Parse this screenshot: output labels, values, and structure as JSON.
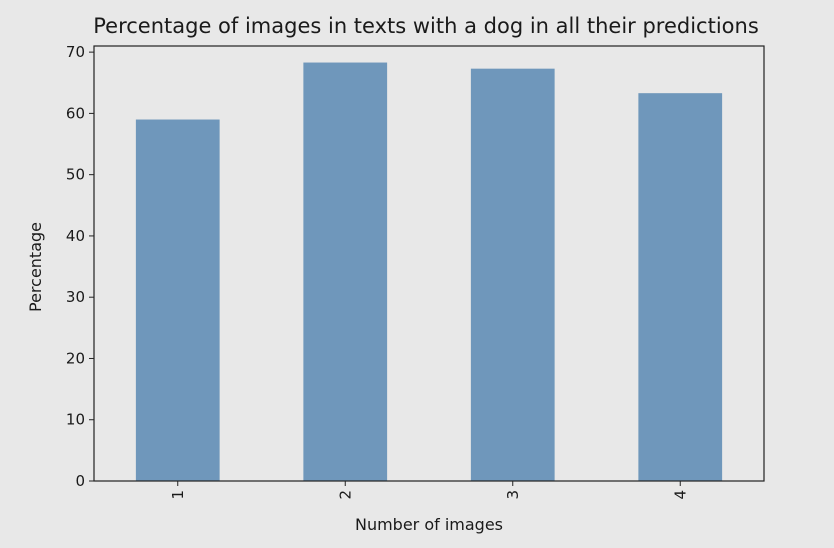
{
  "chart_data": {
    "type": "bar",
    "title": "Percentage of images in texts with a dog in all their predictions",
    "xlabel": "Number of images",
    "ylabel": "Percentage",
    "categories": [
      "1",
      "2",
      "3",
      "4"
    ],
    "values": [
      59.0,
      68.3,
      67.3,
      63.3
    ],
    "ylim": [
      0,
      71
    ],
    "yticks": [
      "0",
      "10",
      "20",
      "30",
      "40",
      "50",
      "60",
      "70"
    ],
    "x_tick_rotation": "vertical",
    "grid": false,
    "legend": "none",
    "colors": {
      "bar": "#6f97bb",
      "background": "#e8e8e8",
      "axes": "#222222"
    }
  }
}
